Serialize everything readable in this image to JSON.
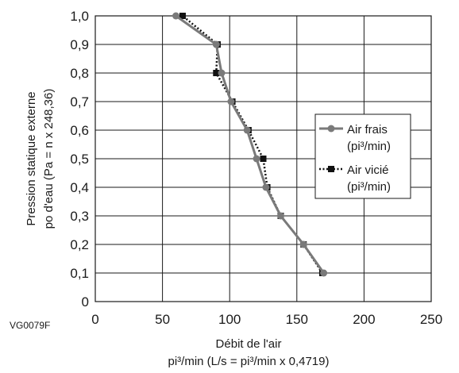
{
  "figure_code": "VG0079F",
  "chart_data": {
    "type": "line",
    "title": "",
    "xlabel": "Débit de l'air",
    "xlabel_units": "pi³/min (L/s = pi³/min x 0,4719)",
    "ylabel": "Pression statique externe",
    "ylabel_units": "po d'eau (Pa = n x 248,36)",
    "xlim": [
      0,
      250
    ],
    "ylim": [
      0,
      1.0
    ],
    "x_ticks": [
      0,
      50,
      100,
      150,
      200,
      250
    ],
    "x_tick_labels": [
      "0",
      "50",
      "100",
      "150",
      "200",
      "250"
    ],
    "y_ticks": [
      0,
      0.1,
      0.2,
      0.3,
      0.4,
      0.5,
      0.6,
      0.7,
      0.8,
      0.9,
      1.0
    ],
    "y_tick_labels": [
      "0",
      "0,1",
      "0,2",
      "0,3",
      "0,4",
      "0,5",
      "0,6",
      "0,7",
      "0,8",
      "0,9",
      "1,0"
    ],
    "grid": true,
    "legend_position": "right",
    "series": [
      {
        "name_line1": "Air frais",
        "name_line2": "(pi³/min)",
        "marker": "circle",
        "line_style": "solid",
        "color": "#7a7a7a",
        "x": [
          170,
          155,
          138,
          127,
          120,
          113,
          101,
          94,
          90,
          60
        ],
        "y": [
          0.1,
          0.2,
          0.3,
          0.4,
          0.5,
          0.6,
          0.7,
          0.8,
          0.9,
          1.0
        ]
      },
      {
        "name_line1": "Air vicié",
        "name_line2": "(pi³/min)",
        "marker": "square",
        "line_style": "dotted",
        "color": "#111111",
        "x": [
          169,
          155,
          138,
          128,
          125,
          114,
          102,
          90,
          91,
          65
        ],
        "y": [
          0.1,
          0.2,
          0.3,
          0.4,
          0.5,
          0.6,
          0.7,
          0.8,
          0.9,
          1.0
        ]
      }
    ]
  }
}
